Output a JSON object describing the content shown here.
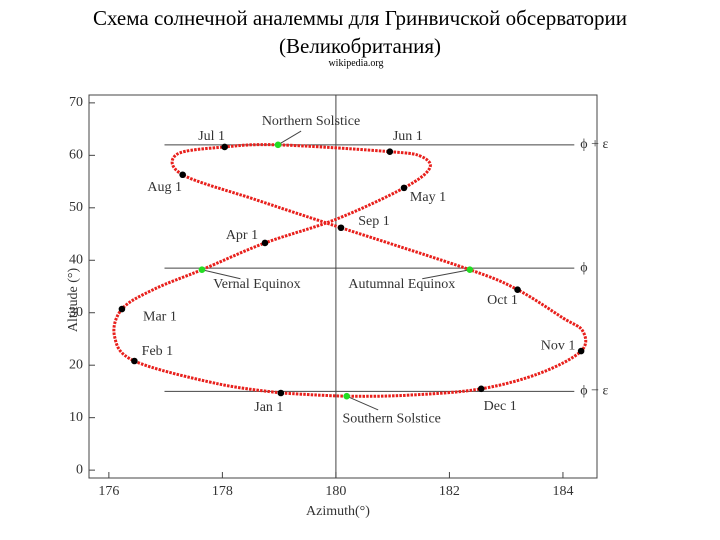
{
  "title": "Схема солнечной аналеммы для Гринвичской обсерватории (Великобритания)",
  "source": "wikipedia.org",
  "chart_data": {
    "type": "line",
    "xlabel": "Azimuth(°)",
    "ylabel": "Altitude (°)",
    "xlim": [
      175.65,
      184.6
    ],
    "ylim": [
      -1.5,
      71.5
    ],
    "xticks": [
      176,
      178,
      180,
      182,
      184
    ],
    "yticks": [
      0,
      10,
      20,
      30,
      40,
      50,
      60,
      70
    ],
    "vline": 180,
    "hlines": [
      {
        "value": 62,
        "label": "ϕ + ε",
        "from": 176.98,
        "to": 184.2
      },
      {
        "value": 38.5,
        "label": "ϕ",
        "from": 176.98,
        "to": 184.2
      },
      {
        "value": 15,
        "label": "ϕ − ε",
        "from": 176.98,
        "to": 184.2
      }
    ],
    "series": [
      {
        "color": "#e8201c",
        "x": [
          179.03,
          177.9,
          176.45,
          176.1,
          176.23,
          176.8,
          177.64,
          178.75,
          180.0,
          181.2,
          181.65,
          181.5,
          180.95,
          178.98,
          178.04,
          177.2,
          177.3,
          178.6,
          180.09,
          182.36,
          183.2,
          184.0,
          184.35,
          184.32,
          183.6,
          182.56,
          181.3,
          180.19,
          179.03
        ],
        "y": [
          14.7,
          16.5,
          20.8,
          25.5,
          30.7,
          34.5,
          38.2,
          43.3,
          47.8,
          53.8,
          57.5,
          59.8,
          60.7,
          62.0,
          61.6,
          60.2,
          56.3,
          51.5,
          46.2,
          38.2,
          34.4,
          29.0,
          26.5,
          22.7,
          18.5,
          15.5,
          14.3,
          14.1,
          14.7
        ]
      }
    ],
    "points": [
      {
        "label": "Jul 1",
        "x": 178.04,
        "y": 61.6,
        "color": "#000000"
      },
      {
        "label": "Northern Solstice",
        "x": 178.98,
        "y": 62.0,
        "color": "#22dd22"
      },
      {
        "label": "Jun 1",
        "x": 180.95,
        "y": 60.7,
        "color": "#000000"
      },
      {
        "label": "May 1",
        "x": 181.2,
        "y": 53.8,
        "color": "#000000"
      },
      {
        "label": "Aug 1",
        "x": 177.3,
        "y": 56.3,
        "color": "#000000"
      },
      {
        "label": "Sep 1",
        "x": 180.09,
        "y": 46.2,
        "color": "#000000"
      },
      {
        "label": "Apr 1",
        "x": 178.75,
        "y": 43.3,
        "color": "#000000"
      },
      {
        "label": "Vernal Equinox",
        "x": 177.64,
        "y": 38.2,
        "color": "#22dd22"
      },
      {
        "label": "Autumnal Equinox",
        "x": 182.36,
        "y": 38.2,
        "color": "#22dd22"
      },
      {
        "label": "Oct 1",
        "x": 183.2,
        "y": 34.4,
        "color": "#000000"
      },
      {
        "label": "Mar 1",
        "x": 176.23,
        "y": 30.7,
        "color": "#000000"
      },
      {
        "label": "Nov 1",
        "x": 184.32,
        "y": 22.7,
        "color": "#000000"
      },
      {
        "label": "Feb 1",
        "x": 176.45,
        "y": 20.8,
        "color": "#000000"
      },
      {
        "label": "Jan 1",
        "x": 179.03,
        "y": 14.7,
        "color": "#000000"
      },
      {
        "label": "Southern Solstice",
        "x": 180.19,
        "y": 14.1,
        "color": "#22dd22"
      },
      {
        "label": "Dec 1",
        "x": 182.56,
        "y": 15.5,
        "color": "#000000"
      }
    ]
  }
}
